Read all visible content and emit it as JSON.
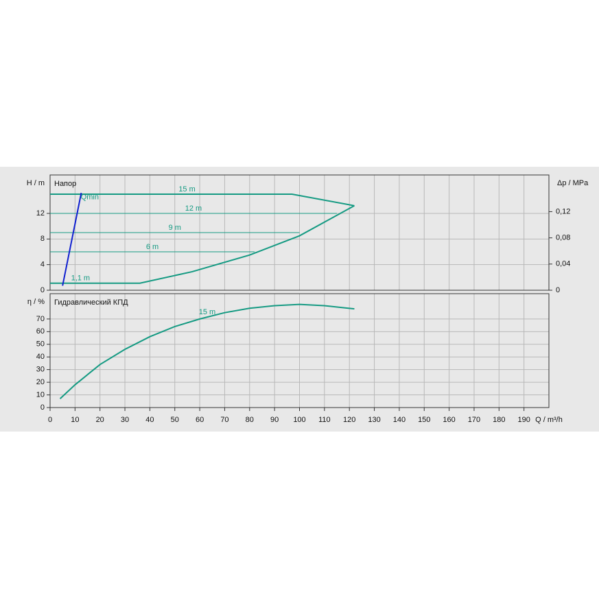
{
  "chart_data": [
    {
      "type": "line",
      "title": "Напор",
      "ylabel": "H / m",
      "y2label": "Δp / MPa",
      "xlim": [
        0,
        200
      ],
      "ylim": [
        0,
        18
      ],
      "yticks": [
        0,
        4,
        8,
        12
      ],
      "y2lim": [
        0,
        0.176
      ],
      "y2ticks": [
        0,
        {
          "value": 0.04,
          "label": "0,04"
        },
        {
          "value": 0.08,
          "label": "0,08"
        },
        {
          "value": 0.12,
          "label": "0,12"
        }
      ],
      "grid": true,
      "series": [
        {
          "name": "15 m",
          "color": "#149a82",
          "x": [
            0,
            97,
            122
          ],
          "values": [
            15,
            15,
            13.2
          ]
        },
        {
          "name": "12 m",
          "color": "#149a82",
          "x": [
            0,
            115
          ],
          "values": [
            12,
            12
          ]
        },
        {
          "name": "9 m",
          "color": "#149a82",
          "x": [
            0,
            100
          ],
          "values": [
            9,
            9
          ]
        },
        {
          "name": "6 m",
          "color": "#149a82",
          "x": [
            0,
            82
          ],
          "values": [
            6,
            6
          ]
        },
        {
          "name": "1,1 m",
          "color": "#149a82",
          "x": [
            0,
            36,
            57,
            80,
            100,
            122
          ],
          "values": [
            1.1,
            1.1,
            2.9,
            5.5,
            8.5,
            13.2
          ]
        },
        {
          "name": "Qmin",
          "color": "#1020d0",
          "x": [
            5,
            12.5
          ],
          "values": [
            0.7,
            15.2
          ]
        }
      ]
    },
    {
      "type": "line",
      "title": "Гидравлический КПД",
      "ylabel": "η / %",
      "xlabel": "Q / m³/h",
      "xlim": [
        0,
        200
      ],
      "xticks": [
        0,
        10,
        20,
        30,
        40,
        50,
        60,
        70,
        80,
        90,
        100,
        110,
        120,
        130,
        140,
        150,
        160,
        170,
        180,
        190
      ],
      "ylim": [
        0,
        90
      ],
      "yticks": [
        0,
        10,
        20,
        30,
        40,
        50,
        60,
        70
      ],
      "grid": true,
      "series": [
        {
          "name": "15 m",
          "color": "#149a82",
          "x": [
            4,
            10,
            20,
            30,
            40,
            50,
            60,
            70,
            80,
            90,
            100,
            110,
            122
          ],
          "values": [
            7,
            18,
            34,
            46,
            56,
            64,
            70,
            75,
            78.5,
            80.5,
            81.5,
            80.5,
            78
          ]
        }
      ]
    }
  ]
}
